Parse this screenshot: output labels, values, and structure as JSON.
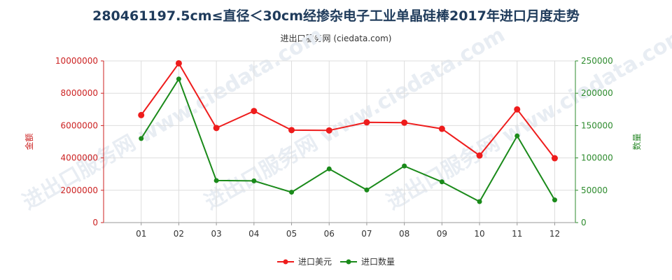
{
  "title": "280461197.5cm≤直径＜30cm经掺杂电子工业单晶硅棒2017年进口月度走势",
  "subtitle": "进出口服务网 (ciedata.com)",
  "watermark": "进出口服务网 www.ciedata.com",
  "colors": {
    "usd_series": "#ee1c1c",
    "qty_series": "#1a8a1a",
    "left_axis": "#cc2222",
    "right_axis": "#2e8b2e"
  },
  "chart_data": {
    "type": "line",
    "title": "280461197.5cm≤直径＜30cm经掺杂电子工业单晶硅棒2017年进口月度走势",
    "categories": [
      "01",
      "02",
      "03",
      "04",
      "05",
      "06",
      "07",
      "08",
      "09",
      "10",
      "11",
      "12"
    ],
    "ylabel_left": "金额",
    "ylabel_right": "数量",
    "ylim_left": [
      0,
      10000000
    ],
    "ylim_right": [
      0,
      250000
    ],
    "yticks_left": [
      "0",
      "2000000",
      "4000000",
      "6000000",
      "8000000",
      "10000000"
    ],
    "yticks_right": [
      "0",
      "50000",
      "100000",
      "150000",
      "200000",
      "250000"
    ],
    "grid": true,
    "legend": "bottom",
    "series": [
      {
        "name": "进口美元",
        "axis": "left",
        "values": [
          6650000,
          9850000,
          5850000,
          6900000,
          5720000,
          5700000,
          6200000,
          6180000,
          5800000,
          4150000,
          7000000,
          3980000
        ]
      },
      {
        "name": "进口数量",
        "axis": "right",
        "values": [
          130000,
          222000,
          65000,
          64500,
          47000,
          83000,
          50500,
          87500,
          63000,
          32500,
          134000,
          35000
        ]
      }
    ]
  }
}
